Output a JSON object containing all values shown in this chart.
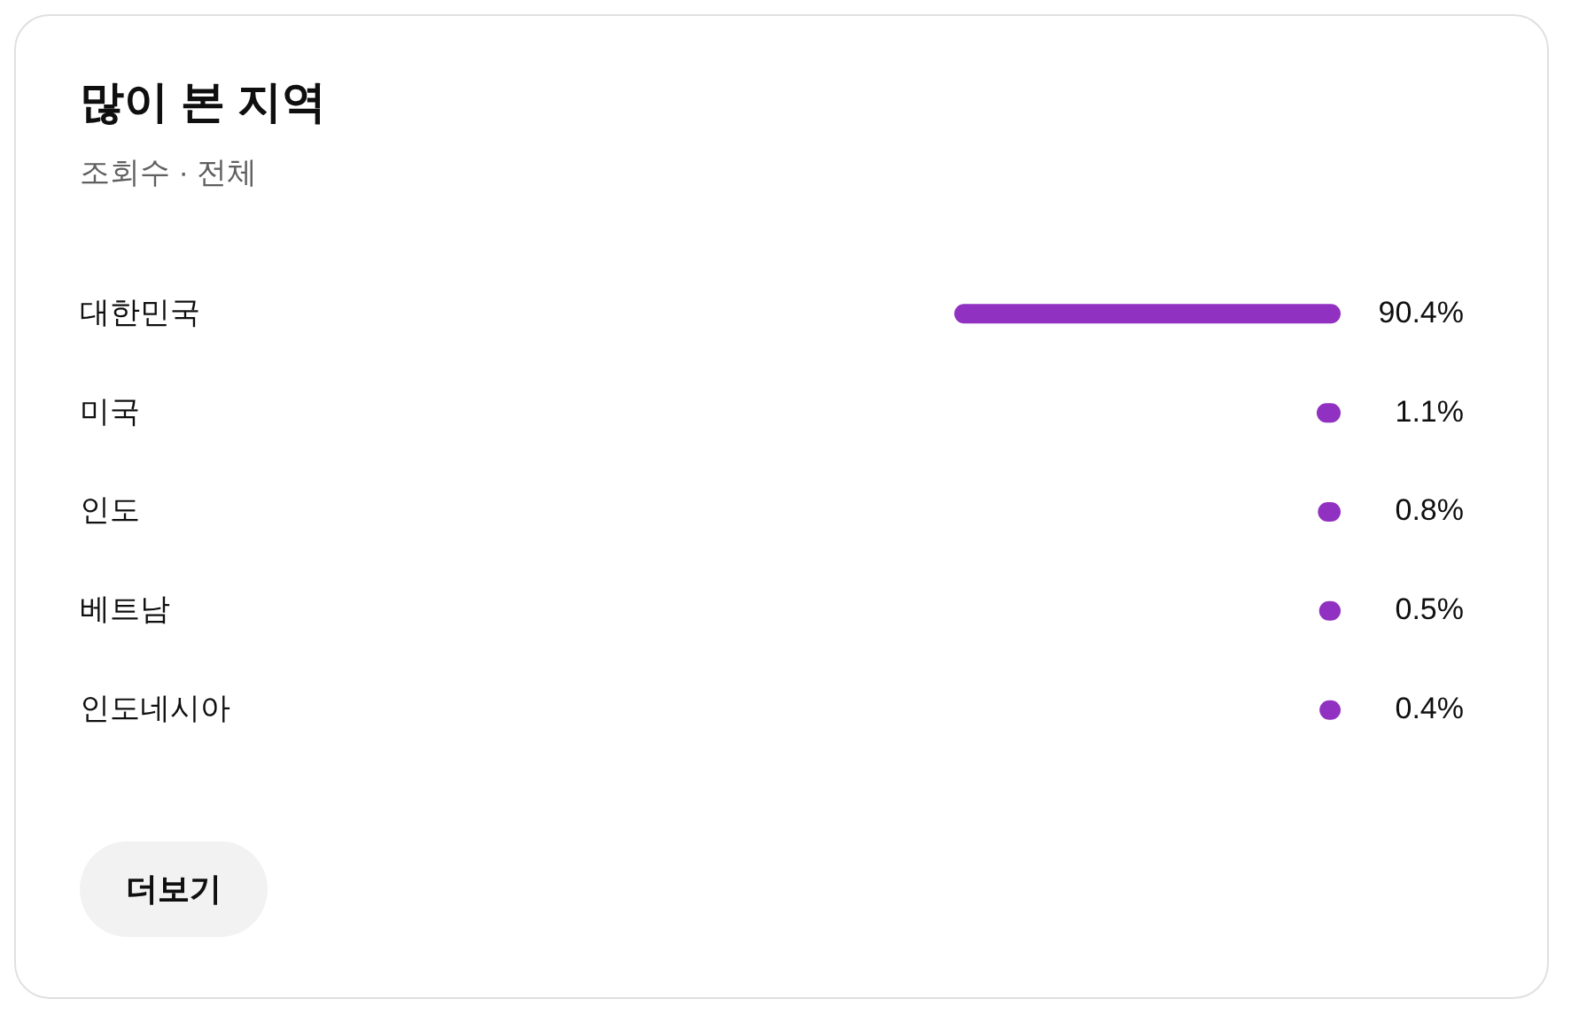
{
  "chart_data": {
    "type": "bar",
    "orientation": "horizontal",
    "title": "많이 본 지역",
    "subtitle": "조회수 · 전체",
    "categories": [
      "대한민국",
      "미국",
      "인도",
      "베트남",
      "인도네시아"
    ],
    "values": [
      90.4,
      1.1,
      0.8,
      0.5,
      0.4
    ],
    "color": "#9131c1",
    "value_labels": [
      "90.4%",
      "1.1%",
      "0.8%",
      "0.5%",
      "0.4%"
    ],
    "tick_labels": "y",
    "annotations": [
      "더보기"
    ]
  }
}
